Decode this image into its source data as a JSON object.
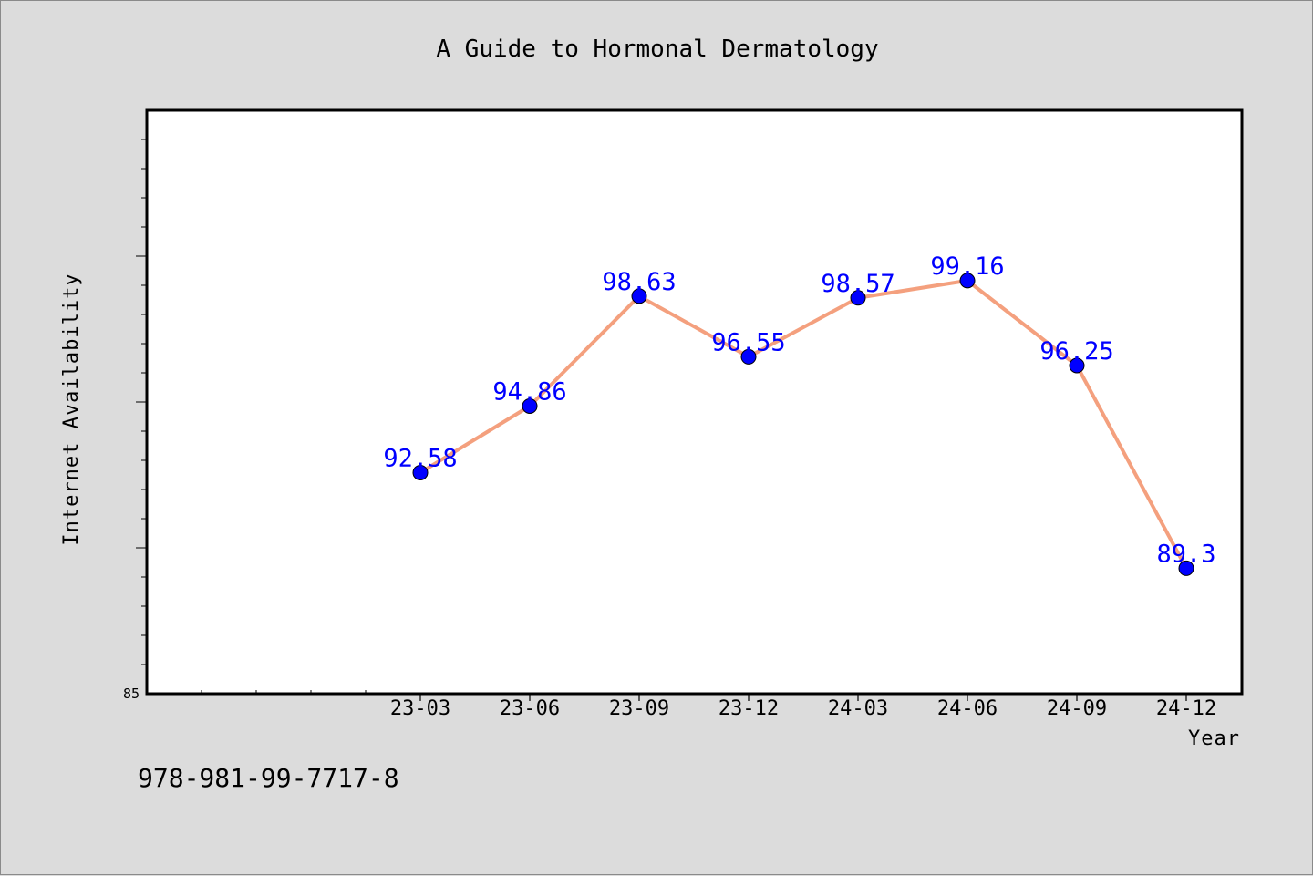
{
  "chart_data": {
    "type": "line",
    "title": "A Guide to Hormonal Dermatology",
    "xlabel": "Year",
    "ylabel": "Internet Availability",
    "categories": [
      "23-03",
      "23-06",
      "23-09",
      "23-12",
      "24-03",
      "24-06",
      "24-09",
      "24-12"
    ],
    "series": [
      {
        "values": [
          92.58,
          94.86,
          98.63,
          96.55,
          98.57,
          99.16,
          96.25,
          89.3
        ],
        "labels": [
          "92.58",
          "94.86",
          "98.63",
          "96.55",
          "98.57",
          "99.16",
          "96.25",
          "89.3"
        ]
      }
    ],
    "ylim": [
      85,
      105
    ],
    "y_tick_labels": [
      "85"
    ],
    "grid": false,
    "colors": {
      "line": "#f4a07e",
      "marker": "#0000ff",
      "data_label": "#0000ff",
      "plot_bg": "#ffffff",
      "page_bg": "#dcdcdc"
    }
  },
  "footer": {
    "isbn": "978-981-99-7717-8"
  }
}
